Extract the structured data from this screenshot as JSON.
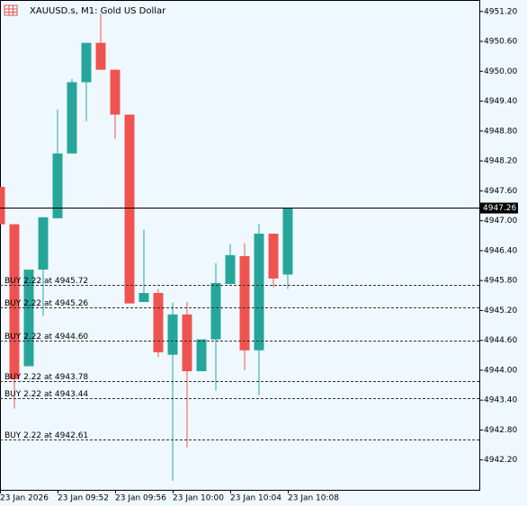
{
  "chart_data": {
    "type": "candlestick",
    "title": "XAUUSD.s, M1:  Gold US Dollar",
    "categories": [
      "23 Jan 2026",
      null,
      null,
      null,
      "23 Jan 09:52",
      null,
      null,
      null,
      "23 Jan 09:56",
      null,
      null,
      null,
      "23 Jan 10:00",
      null,
      null,
      null,
      "23 Jan 10:04",
      null,
      null,
      null,
      "23 Jan 10:08"
    ],
    "open": [
      4947.68,
      4946.93,
      4944.08,
      4946.02,
      4947.05,
      4948.35,
      4949.78,
      4950.57,
      4950.03,
      4949.13,
      4945.37,
      4945.55,
      4944.31,
      4945.12,
      4943.98,
      4944.62,
      4945.73,
      4946.29,
      4944.4,
      4946.74,
      4945.92
    ],
    "high": [
      4947.68,
      4946.93,
      4946.02,
      4947.07,
      4949.23,
      4949.85,
      4950.57,
      4951.16,
      4950.03,
      4949.13,
      4946.82,
      4945.63,
      4945.36,
      4945.37,
      4944.62,
      4946.15,
      4946.53,
      4946.55,
      4946.93,
      4946.74,
      4947.26
    ],
    "low": [
      4946.93,
      4943.23,
      4944.08,
      4945.09,
      4947.05,
      4948.35,
      4949.0,
      4950.03,
      4948.64,
      4945.34,
      4945.37,
      4944.26,
      4941.78,
      4942.45,
      4943.98,
      4943.59,
      4945.73,
      4944.0,
      4943.5,
      4945.66,
      4945.63
    ],
    "close": [
      4946.93,
      4943.82,
      4946.02,
      4947.07,
      4948.35,
      4949.78,
      4950.57,
      4950.03,
      4949.13,
      4945.34,
      4945.55,
      4944.36,
      4945.12,
      4943.98,
      4944.62,
      4945.75,
      4946.31,
      4944.4,
      4946.74,
      4945.84,
      4947.26
    ],
    "up_color": "#26a69a",
    "down_color": "#ef5350",
    "ylim": [
      4941.6,
      4951.43
    ],
    "yticks": [
      {
        "value": 4951.2,
        "label": "4951.20"
      },
      {
        "value": 4950.6,
        "label": "4950.60"
      },
      {
        "value": 4950.0,
        "label": "4950.00"
      },
      {
        "value": 4949.4,
        "label": "4949.40"
      },
      {
        "value": 4948.8,
        "label": "4948.80"
      },
      {
        "value": 4948.2,
        "label": "4948.20"
      },
      {
        "value": 4947.6,
        "label": "4947.60"
      },
      {
        "value": 4947.0,
        "label": "4947.00"
      },
      {
        "value": 4946.4,
        "label": "4946.40"
      },
      {
        "value": 4945.8,
        "label": "4945.80"
      },
      {
        "value": 4945.2,
        "label": "4945.20"
      },
      {
        "value": 4944.6,
        "label": "4944.60"
      },
      {
        "value": 4944.0,
        "label": "4944.00"
      },
      {
        "value": 4943.4,
        "label": "4943.40"
      },
      {
        "value": 4942.8,
        "label": "4942.80"
      },
      {
        "value": 4942.2,
        "label": "4942.20"
      }
    ],
    "current_price": 4947.26,
    "order_lines": [
      {
        "value": 4945.72,
        "label": "BUY 2.22 at 4945.72"
      },
      {
        "value": 4945.26,
        "label": "BUY 2.22 at 4945.26"
      },
      {
        "value": 4944.6,
        "label": "BUY 2.22 at 4944.60"
      },
      {
        "value": 4943.78,
        "label": "BUY 2.22 at 4943.78"
      },
      {
        "value": 4943.44,
        "label": "BUY 2.22 at 4943.44"
      },
      {
        "value": 4942.61,
        "label": "BUY 2.22 at 4942.61"
      }
    ]
  }
}
